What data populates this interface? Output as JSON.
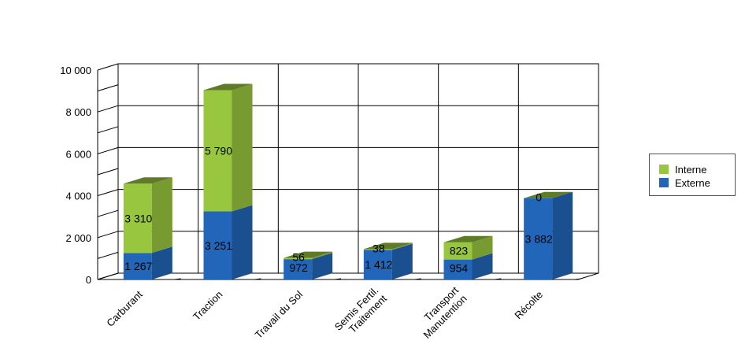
{
  "chart_data": {
    "type": "bar",
    "stacked": true,
    "three_d": true,
    "categories": [
      [
        "Carburant"
      ],
      [
        "Traction"
      ],
      [
        "Travail du Sol"
      ],
      [
        "Semis Fertil.",
        "Traitement"
      ],
      [
        "Transport",
        "Manutention"
      ],
      [
        "Récolte"
      ]
    ],
    "series": [
      {
        "name": "Externe",
        "color": "#2166b8",
        "values": [
          1267,
          3251,
          972,
          1412,
          954,
          3882
        ],
        "labels": [
          "1 267",
          "3 251",
          "972",
          "1 412",
          "954",
          "3 882"
        ]
      },
      {
        "name": "Interne",
        "color": "#99c63f",
        "values": [
          3310,
          5790,
          56,
          38,
          823,
          0
        ],
        "labels": [
          "3 310",
          "5 790",
          "56",
          "38",
          "823",
          "0"
        ]
      }
    ],
    "ylim": [
      0,
      10000
    ],
    "yticks": [
      0,
      2000,
      4000,
      6000,
      8000,
      10000
    ],
    "ytick_labels": [
      "0",
      "2 000",
      "4 000",
      "6 000",
      "8 000",
      "10 000"
    ],
    "grid": true,
    "legend": {
      "position": "right",
      "order": [
        "Interne",
        "Externe"
      ]
    },
    "title": "",
    "xlabel": "",
    "ylabel": ""
  }
}
